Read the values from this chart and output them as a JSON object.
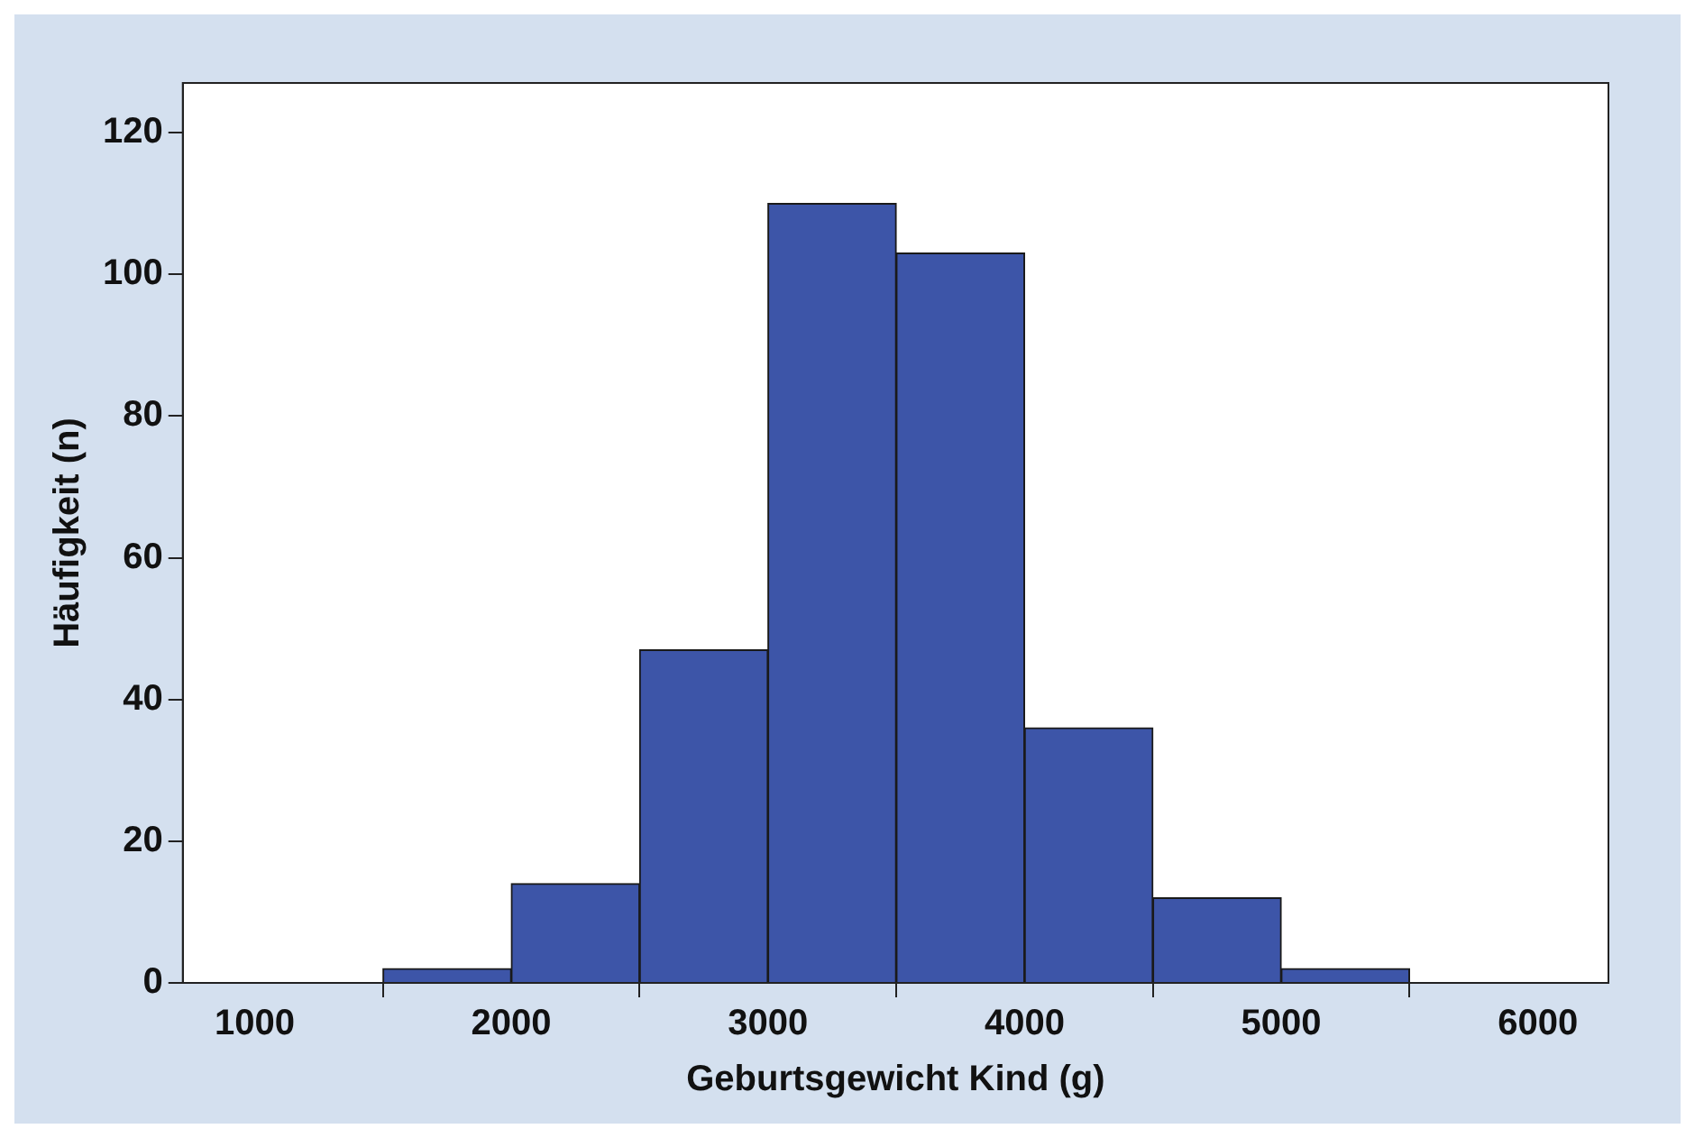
{
  "chart_data": {
    "type": "histogram",
    "xlabel": "Geburtsgewicht Kind (g)",
    "ylabel": "Häufigkeit (n)",
    "bins": [
      1500,
      2000,
      2500,
      3000,
      3500,
      4000,
      4500,
      5000,
      5500
    ],
    "values": [
      2,
      14,
      47,
      110,
      103,
      36,
      12,
      2
    ],
    "color": "#3d55a8",
    "xlim": [
      720,
      6275
    ],
    "xticks": [
      1000,
      2000,
      3000,
      4000,
      5000,
      6000
    ],
    "ylim": [
      0,
      127
    ],
    "yticks": [
      0,
      20,
      40,
      60,
      80,
      100,
      120
    ],
    "grid": false,
    "legend": false
  }
}
